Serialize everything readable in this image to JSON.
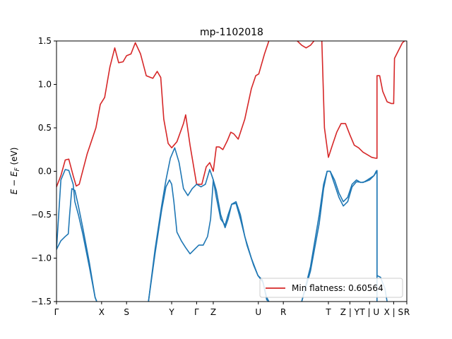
{
  "chart_data": {
    "type": "line",
    "title": "mp-1102018",
    "ylabel": "E − E_F (eV)",
    "ylabel_main": "E − E",
    "ylabel_sub": "F",
    "ylabel_unit": " (eV)",
    "ylim": [
      -1.5,
      1.5
    ],
    "xlim": [
      0,
      8.0
    ],
    "yticks": [
      -1.5,
      -1.0,
      -0.5,
      0.0,
      0.5,
      1.0,
      1.5
    ],
    "ytick_labels": [
      "−1.5",
      "−1.0",
      "−0.5",
      "0.0",
      "0.5",
      "1.0",
      "1.5"
    ],
    "xticks": [
      {
        "label": "Γ",
        "x": 0.0
      },
      {
        "label": "X",
        "x": 1.03
      },
      {
        "label": "S",
        "x": 1.6
      },
      {
        "label": "Y",
        "x": 2.63
      },
      {
        "label": "Γ",
        "x": 3.2
      },
      {
        "label": "Z",
        "x": 3.58
      },
      {
        "label": "U",
        "x": 4.61
      },
      {
        "label": "R",
        "x": 5.18
      },
      {
        "label": "T",
        "x": 6.21
      },
      {
        "label": "Z | Y",
        "x": 6.7
      },
      {
        "label": "T | U",
        "x": 7.15
      },
      {
        "label": "X | S",
        "x": 7.7
      },
      {
        "label": "R",
        "x": 8.0
      }
    ],
    "grid": false,
    "legend": {
      "placement": "lower-right",
      "entries": [
        {
          "label": "Min flatness: 0.60564",
          "color": "#d62728"
        }
      ]
    },
    "series": [
      {
        "color": "#d62728",
        "segments": [
          [
            [
              0,
              -0.18
            ],
            [
              0.1,
              -0.05
            ],
            [
              0.2,
              0.13
            ],
            [
              0.28,
              0.14
            ],
            [
              0.38,
              -0.05
            ],
            [
              0.45,
              -0.17
            ],
            [
              0.52,
              -0.15
            ],
            [
              0.7,
              0.2
            ],
            [
              0.9,
              0.5
            ],
            [
              1.0,
              0.77
            ],
            [
              1.1,
              0.85
            ],
            [
              1.22,
              1.2
            ],
            [
              1.33,
              1.42
            ],
            [
              1.42,
              1.25
            ],
            [
              1.52,
              1.26
            ],
            [
              1.6,
              1.33
            ],
            [
              1.7,
              1.35
            ],
            [
              1.8,
              1.48
            ],
            [
              1.92,
              1.35
            ],
            [
              2.05,
              1.1
            ],
            [
              2.2,
              1.07
            ],
            [
              2.3,
              1.15
            ],
            [
              2.38,
              1.08
            ],
            [
              2.45,
              0.6
            ],
            [
              2.55,
              0.32
            ],
            [
              2.63,
              0.27
            ],
            [
              2.75,
              0.34
            ],
            [
              2.9,
              0.55
            ],
            [
              2.95,
              0.65
            ],
            [
              3.05,
              0.3
            ],
            [
              3.2,
              -0.15
            ],
            [
              3.32,
              -0.15
            ],
            [
              3.42,
              0.05
            ],
            [
              3.5,
              0.1
            ],
            [
              3.58,
              0.0
            ],
            [
              3.65,
              0.28
            ],
            [
              3.72,
              0.28
            ],
            [
              3.8,
              0.25
            ],
            [
              3.9,
              0.35
            ],
            [
              3.98,
              0.45
            ],
            [
              4.05,
              0.43
            ],
            [
              4.15,
              0.37
            ],
            [
              4.3,
              0.6
            ],
            [
              4.45,
              0.95
            ],
            [
              4.55,
              1.1
            ],
            [
              4.62,
              1.12
            ],
            [
              4.75,
              1.35
            ],
            [
              4.85,
              1.5
            ]
          ],
          [
            [
              5.5,
              1.5
            ],
            [
              5.6,
              1.45
            ],
            [
              5.7,
              1.42
            ],
            [
              5.8,
              1.45
            ],
            [
              5.88,
              1.5
            ]
          ],
          [
            [
              6.06,
              1.5
            ],
            [
              6.12,
              0.5
            ],
            [
              6.21,
              0.16
            ],
            [
              6.3,
              0.3
            ],
            [
              6.4,
              0.45
            ],
            [
              6.5,
              0.55
            ],
            [
              6.6,
              0.55
            ],
            [
              6.7,
              0.42
            ],
            [
              6.8,
              0.3
            ],
            [
              6.9,
              0.27
            ],
            [
              7.0,
              0.22
            ],
            [
              7.1,
              0.19
            ],
            [
              7.2,
              0.16
            ],
            [
              7.3,
              0.15
            ],
            [
              7.32,
              0.15
            ],
            [
              7.32,
              1.1
            ],
            [
              7.38,
              1.1
            ],
            [
              7.45,
              0.92
            ],
            [
              7.55,
              0.8
            ],
            [
              7.65,
              0.78
            ],
            [
              7.7,
              0.78
            ],
            [
              7.72,
              1.3
            ],
            [
              7.8,
              1.38
            ],
            [
              7.9,
              1.48
            ],
            [
              7.95,
              1.5
            ]
          ]
        ]
      },
      {
        "color": "#1f77b4",
        "segments": [
          [
            [
              0,
              -0.9
            ],
            [
              0.1,
              -0.8
            ],
            [
              0.2,
              -0.75
            ],
            [
              0.27,
              -0.72
            ],
            [
              0.3,
              -0.5
            ],
            [
              0.35,
              -0.2
            ],
            [
              0.42,
              -0.22
            ],
            [
              0.5,
              -0.4
            ],
            [
              0.6,
              -0.65
            ],
            [
              0.75,
              -1.05
            ],
            [
              0.88,
              -1.45
            ],
            [
              0.92,
              -1.5
            ]
          ],
          [
            [
              0,
              -0.9
            ],
            [
              0.1,
              -0.1
            ],
            [
              0.2,
              0.02
            ],
            [
              0.28,
              0.01
            ],
            [
              0.38,
              -0.15
            ],
            [
              0.42,
              -0.35
            ],
            [
              0.5,
              -0.5
            ],
            [
              0.6,
              -0.72
            ],
            [
              0.75,
              -1.1
            ],
            [
              0.88,
              -1.45
            ],
            [
              0.92,
              -1.5
            ]
          ],
          [
            [
              2.1,
              -1.5
            ],
            [
              2.25,
              -0.95
            ],
            [
              2.4,
              -0.45
            ],
            [
              2.5,
              -0.18
            ],
            [
              2.58,
              -0.1
            ],
            [
              2.63,
              -0.15
            ],
            [
              2.68,
              -0.35
            ],
            [
              2.75,
              -0.7
            ],
            [
              2.85,
              -0.8
            ],
            [
              2.95,
              -0.88
            ],
            [
              3.05,
              -0.95
            ],
            [
              3.15,
              -0.9
            ],
            [
              3.25,
              -0.85
            ],
            [
              3.35,
              -0.85
            ],
            [
              3.45,
              -0.75
            ],
            [
              3.52,
              -0.55
            ],
            [
              3.58,
              -0.1
            ],
            [
              3.65,
              -0.22
            ],
            [
              3.75,
              -0.5
            ],
            [
              3.85,
              -0.65
            ],
            [
              3.92,
              -0.55
            ],
            [
              4.0,
              -0.38
            ],
            [
              4.1,
              -0.35
            ],
            [
              4.2,
              -0.5
            ],
            [
              4.3,
              -0.75
            ],
            [
              4.45,
              -1.0
            ],
            [
              4.6,
              -1.2
            ],
            [
              4.7,
              -1.25
            ],
            [
              4.8,
              -1.45
            ],
            [
              4.85,
              -1.5
            ]
          ],
          [
            [
              2.1,
              -1.5
            ],
            [
              2.25,
              -0.9
            ],
            [
              2.4,
              -0.4
            ],
            [
              2.5,
              -0.1
            ],
            [
              2.6,
              0.15
            ],
            [
              2.7,
              0.27
            ],
            [
              2.8,
              0.1
            ],
            [
              2.9,
              -0.2
            ],
            [
              3.0,
              -0.28
            ],
            [
              3.1,
              -0.2
            ],
            [
              3.2,
              -0.15
            ],
            [
              3.3,
              -0.18
            ],
            [
              3.4,
              -0.15
            ],
            [
              3.5,
              0.02
            ],
            [
              3.58,
              -0.1
            ],
            [
              3.65,
              -0.3
            ],
            [
              3.75,
              -0.55
            ],
            [
              3.85,
              -0.62
            ],
            [
              3.92,
              -0.5
            ],
            [
              4.0,
              -0.38
            ],
            [
              4.1,
              -0.37
            ],
            [
              4.2,
              -0.55
            ],
            [
              4.35,
              -0.85
            ],
            [
              4.5,
              -1.08
            ],
            [
              4.6,
              -1.2
            ],
            [
              4.72,
              -1.28
            ],
            [
              4.8,
              -1.48
            ],
            [
              4.85,
              -1.5
            ]
          ],
          [
            [
              5.6,
              -1.5
            ],
            [
              5.8,
              -1.1
            ],
            [
              6.0,
              -0.5
            ],
            [
              6.1,
              -0.15
            ],
            [
              6.18,
              0.0
            ],
            [
              6.25,
              0.0
            ],
            [
              6.35,
              -0.1
            ],
            [
              6.45,
              -0.25
            ],
            [
              6.55,
              -0.35
            ],
            [
              6.65,
              -0.3
            ],
            [
              6.75,
              -0.15
            ],
            [
              6.85,
              -0.1
            ],
            [
              6.95,
              -0.13
            ],
            [
              7.05,
              -0.12
            ],
            [
              7.15,
              -0.1
            ],
            [
              7.25,
              -0.05
            ],
            [
              7.3,
              0.0
            ],
            [
              7.32,
              0.01
            ],
            [
              7.32,
              -1.5
            ]
          ],
          [
            [
              5.6,
              -1.5
            ],
            [
              5.8,
              -1.15
            ],
            [
              6.0,
              -0.6
            ],
            [
              6.1,
              -0.2
            ],
            [
              6.18,
              0.0
            ],
            [
              6.25,
              0.0
            ],
            [
              6.35,
              -0.15
            ],
            [
              6.45,
              -0.3
            ],
            [
              6.55,
              -0.4
            ],
            [
              6.65,
              -0.35
            ],
            [
              6.75,
              -0.18
            ],
            [
              6.85,
              -0.12
            ],
            [
              7.0,
              -0.13
            ],
            [
              7.1,
              -0.1
            ],
            [
              7.25,
              -0.05
            ],
            [
              7.32,
              0.0
            ],
            [
              7.32,
              -1.2
            ],
            [
              7.4,
              -1.22
            ],
            [
              7.5,
              -1.35
            ],
            [
              7.55,
              -1.5
            ]
          ]
        ]
      }
    ]
  }
}
